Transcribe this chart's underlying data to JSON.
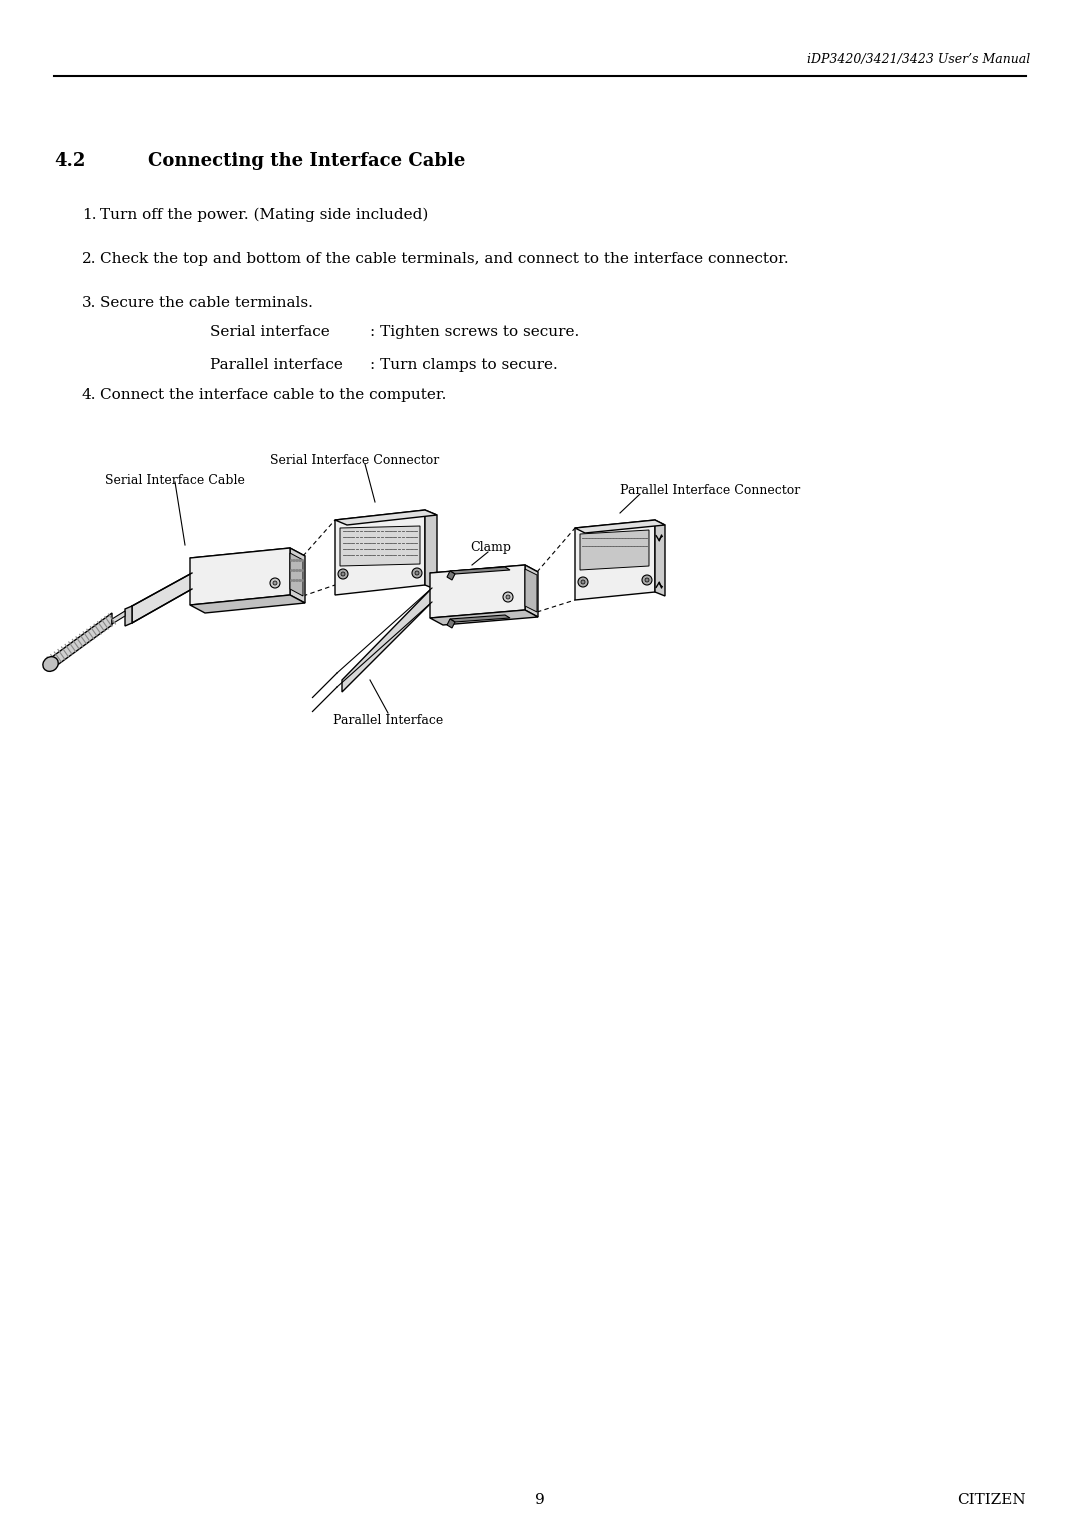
{
  "header_text": "iDP3420/3421/3423 User’s Manual",
  "section_number": "4.2",
  "section_title": "Connecting the Interface Cable",
  "step1": "Turn off the power. (Mating side included)",
  "step2": "Check the top and bottom of the cable terminals, and connect to the interface connector.",
  "step3": "Secure the cable terminals.",
  "step4": "Connect the interface cable to the computer.",
  "sub1_label": "Serial interface",
  "sub1_text": ": Tighten screws to secure.",
  "sub2_label": "Parallel interface",
  "sub2_text": ": Turn clamps to secure.",
  "label_serial_cable": "Serial Interface Cable",
  "label_serial_connector": "Serial Interface Connector",
  "label_clamp": "Clamp",
  "label_parallel_connector": "Parallel Interface Connector",
  "label_parallel_interface": "Parallel Interface",
  "footer_page": "9",
  "footer_brand": "CITIZEN",
  "bg_color": "#ffffff",
  "text_color": "#000000"
}
